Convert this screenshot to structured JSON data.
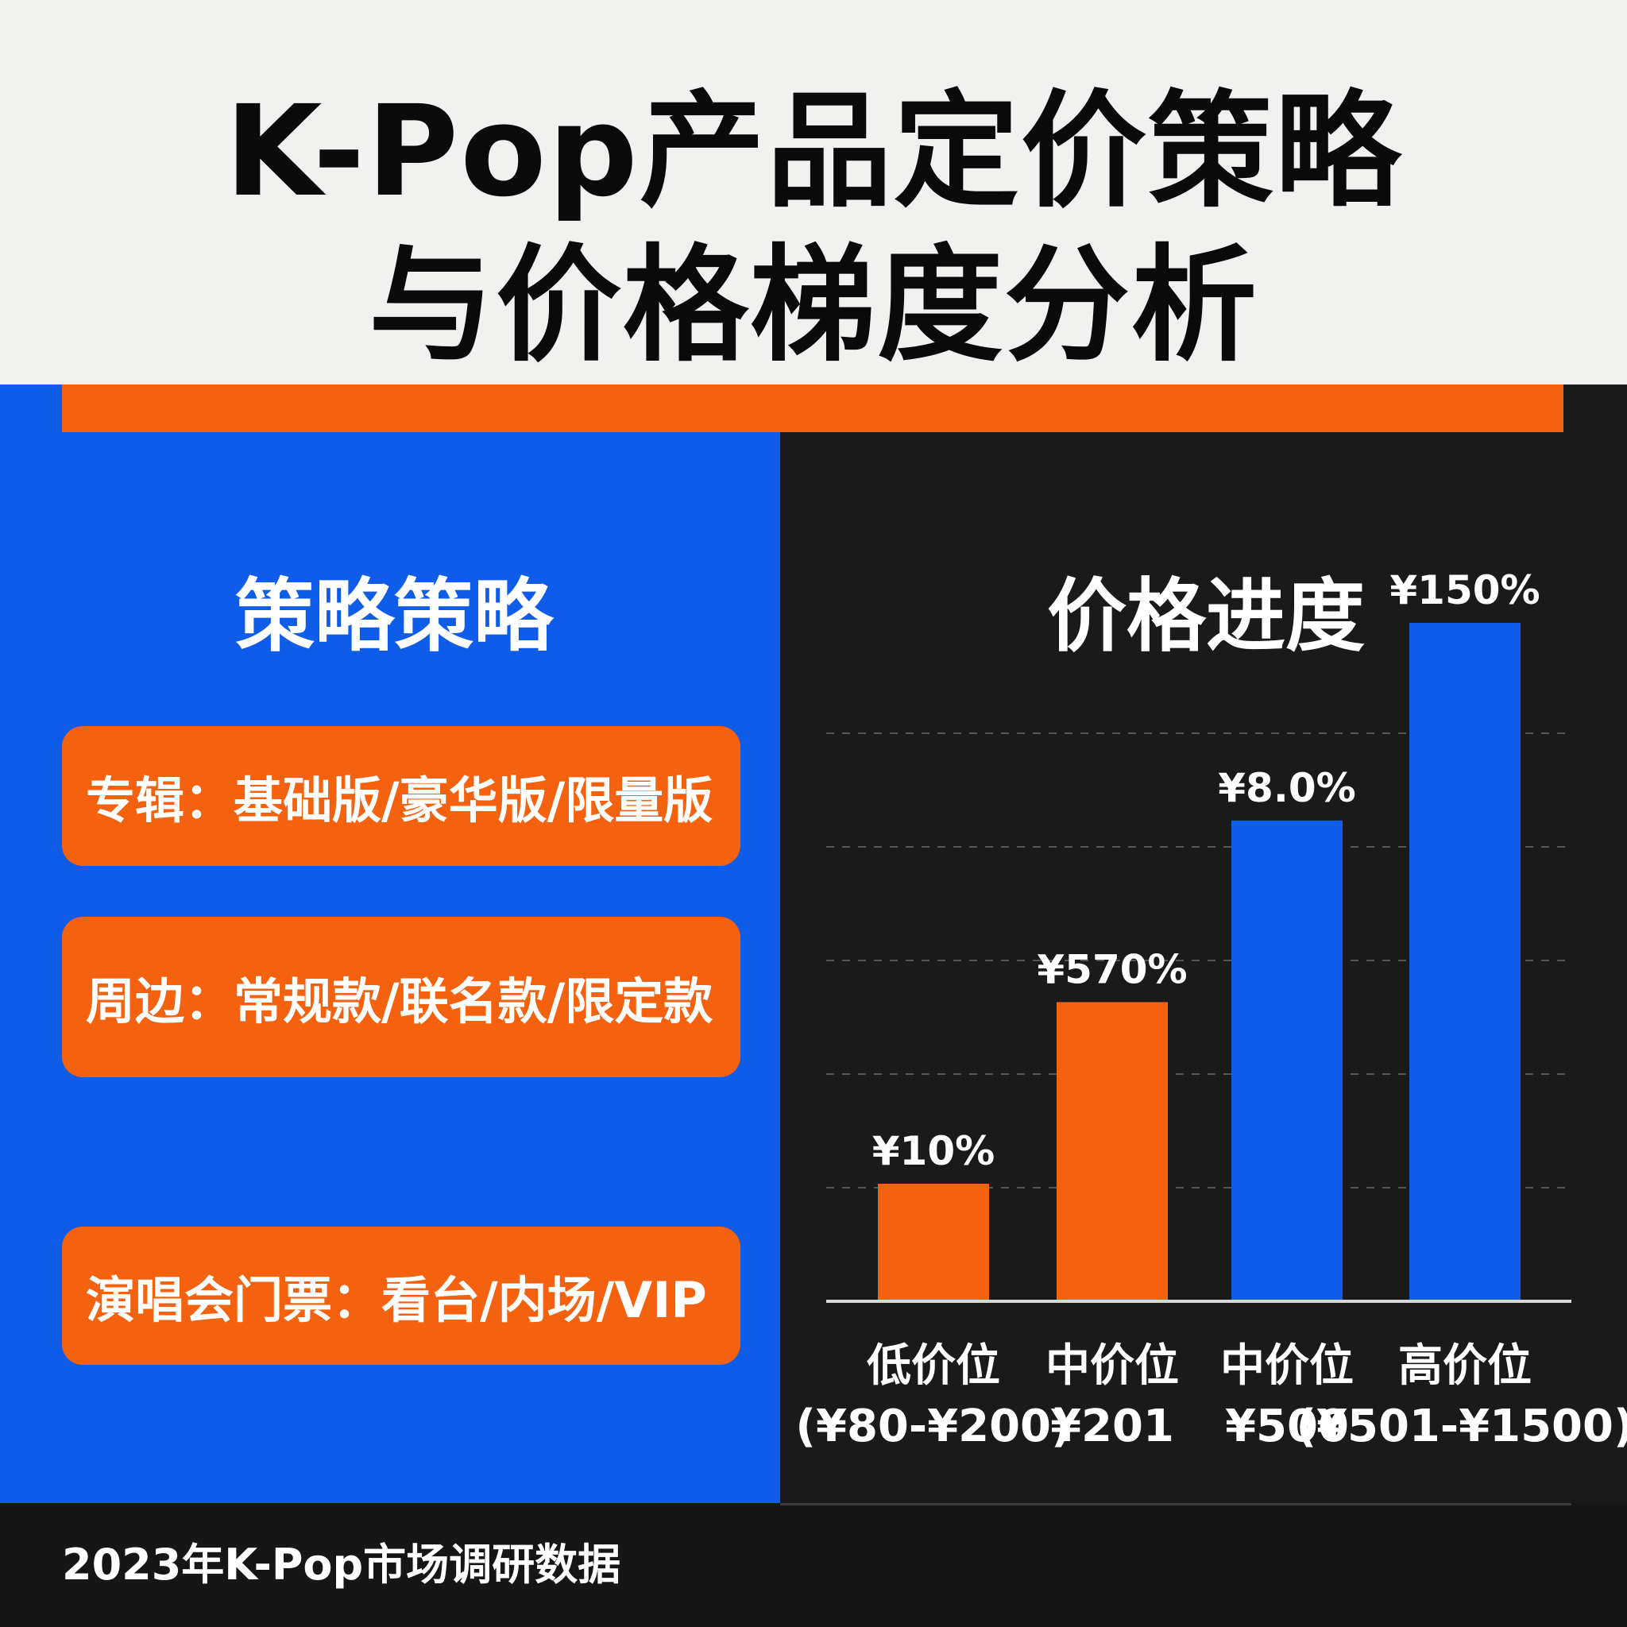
{
  "title": {
    "line1": "K-Pop产品定价策略",
    "line2": "与价格梯度分析"
  },
  "left_panel": {
    "heading": "策略策略",
    "cards": [
      "专辑：基础版/豪华版/限量版",
      "周边：常规款/联名款/限定款",
      "演唱会门票：看台/内场/VIP"
    ]
  },
  "chart_data": {
    "type": "bar",
    "title": "价格进度",
    "categories": [
      [
        "低价位",
        "(¥80-¥200)"
      ],
      [
        "中价位",
        "¥201"
      ],
      [
        "中价位",
        "¥500"
      ],
      [
        "高价位",
        "(¥501-¥1500)"
      ]
    ],
    "values": [
      22,
      56,
      90,
      127
    ],
    "data_labels": [
      "¥10%",
      "¥570%",
      "¥8.0%",
      "¥150%"
    ],
    "bar_colors": [
      "#f4620f",
      "#f4620f",
      "#0f5ce8",
      "#0f5ce8"
    ],
    "ylim": [
      0,
      127
    ],
    "grid": true,
    "grid_style": "dashed",
    "xlabel": "",
    "ylabel": ""
  },
  "footer": {
    "note": "2023年K-Pop市场调研数据"
  },
  "colors": {
    "accent_orange": "#f4620f",
    "accent_blue": "#0f5ce8",
    "dark_panel": "#1a1a1a",
    "title_band": "#f1f1ef"
  }
}
